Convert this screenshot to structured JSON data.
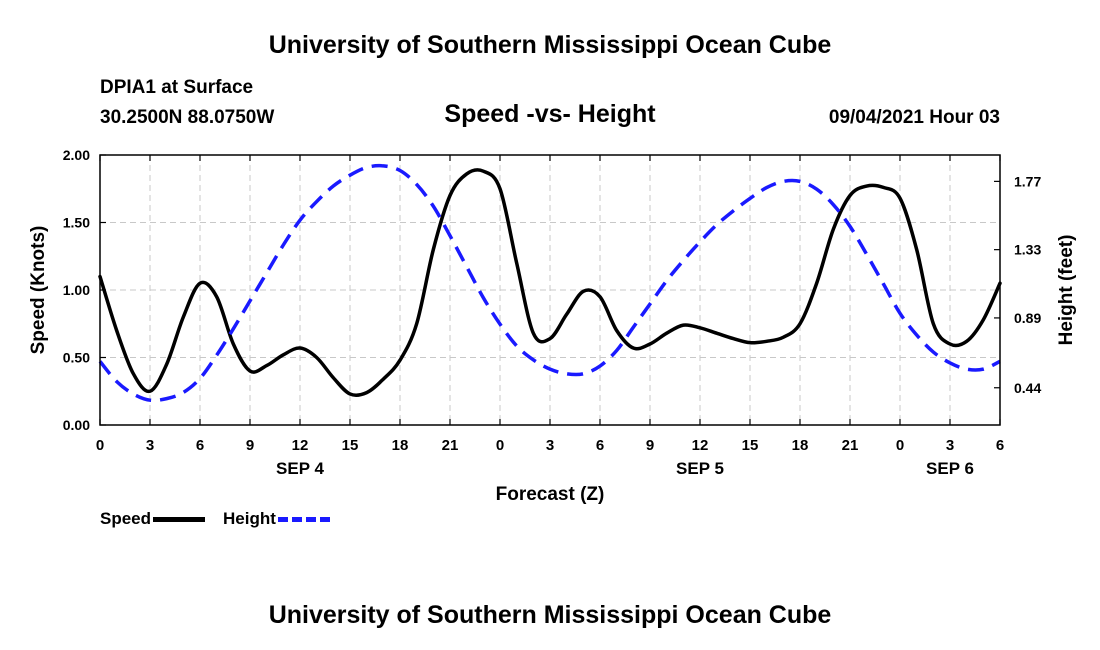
{
  "page_title": "University of Southern Mississippi Ocean Cube",
  "footer_title": "University of Southern Mississippi Ocean Cube",
  "station": {
    "name": "DPIA1 at Surface",
    "coords": "30.2500N  88.0750W",
    "datetime": "09/04/2021 Hour 03"
  },
  "chart_data": {
    "type": "line",
    "title": "Speed -vs- Height",
    "xlabel": "Forecast (Z)",
    "ylabel": "Speed (Knots)",
    "ylabel_right": "Height (feet)",
    "xlim": [
      0,
      54
    ],
    "ylim": [
      0,
      2
    ],
    "ylim_right": [
      0.2,
      1.94
    ],
    "grid": true,
    "x_ticks": [
      0,
      3,
      6,
      9,
      12,
      15,
      18,
      21,
      24,
      27,
      30,
      33,
      36,
      39,
      42,
      45,
      48,
      51,
      54
    ],
    "x_tick_labels": [
      "0",
      "3",
      "6",
      "9",
      "12",
      "15",
      "18",
      "21",
      "0",
      "3",
      "6",
      "9",
      "12",
      "15",
      "18",
      "21",
      "0",
      "3",
      "6"
    ],
    "y_ticks": [
      0,
      0.5,
      1.0,
      1.5,
      2.0
    ],
    "y_tick_labels": [
      "0.00",
      "0.50",
      "1.00",
      "1.50",
      "2.00"
    ],
    "y_right_ticks": [
      0.44,
      0.89,
      1.33,
      1.77
    ],
    "y_right_tick_labels": [
      "0.44",
      "0.89",
      "1.33",
      "1.77"
    ],
    "day_labels": [
      {
        "x": 12,
        "label": "SEP 4"
      },
      {
        "x": 36,
        "label": "SEP 5"
      },
      {
        "x": 51,
        "label": "SEP 6"
      }
    ],
    "series": [
      {
        "name": "Speed",
        "axis": "left",
        "color": "#000000",
        "dash": "solid",
        "x": [
          0,
          1,
          2,
          3,
          4,
          5,
          6,
          7,
          8,
          9,
          10,
          11,
          12,
          13,
          14,
          15,
          16,
          17,
          18,
          19,
          20,
          21,
          22,
          23,
          24,
          25,
          26,
          27,
          28,
          29,
          30,
          31,
          32,
          33,
          34,
          35,
          36,
          37,
          38,
          39,
          40,
          41,
          42,
          43,
          44,
          45,
          46,
          47,
          48,
          49,
          50,
          51,
          52,
          53,
          54
        ],
        "values": [
          1.1,
          0.7,
          0.38,
          0.25,
          0.45,
          0.8,
          1.05,
          0.95,
          0.6,
          0.4,
          0.44,
          0.52,
          0.57,
          0.5,
          0.35,
          0.23,
          0.24,
          0.34,
          0.48,
          0.75,
          1.3,
          1.7,
          1.86,
          1.88,
          1.75,
          1.2,
          0.68,
          0.64,
          0.82,
          0.99,
          0.95,
          0.7,
          0.57,
          0.6,
          0.68,
          0.74,
          0.72,
          0.68,
          0.64,
          0.61,
          0.62,
          0.65,
          0.75,
          1.05,
          1.45,
          1.7,
          1.77,
          1.76,
          1.68,
          1.3,
          0.75,
          0.6,
          0.62,
          0.78,
          1.05
        ]
      },
      {
        "name": "Height",
        "axis": "right",
        "color": "#1a1aff",
        "dash": "dashed",
        "x": [
          0,
          1,
          2,
          3,
          4,
          5,
          6,
          7,
          8,
          9,
          10,
          11,
          12,
          13,
          14,
          15,
          16,
          17,
          18,
          19,
          20,
          21,
          22,
          23,
          24,
          25,
          26,
          27,
          28,
          29,
          30,
          31,
          32,
          33,
          34,
          35,
          36,
          37,
          38,
          39,
          40,
          41,
          42,
          43,
          44,
          45,
          46,
          47,
          48,
          49,
          50,
          51,
          52,
          53,
          54
        ],
        "values": [
          0.61,
          0.48,
          0.4,
          0.36,
          0.37,
          0.41,
          0.5,
          0.65,
          0.82,
          1.0,
          1.18,
          1.36,
          1.52,
          1.64,
          1.74,
          1.81,
          1.86,
          1.87,
          1.84,
          1.75,
          1.61,
          1.42,
          1.22,
          1.02,
          0.85,
          0.71,
          0.62,
          0.56,
          0.53,
          0.53,
          0.58,
          0.68,
          0.83,
          0.98,
          1.13,
          1.26,
          1.38,
          1.49,
          1.58,
          1.66,
          1.73,
          1.77,
          1.77,
          1.72,
          1.62,
          1.48,
          1.3,
          1.11,
          0.92,
          0.78,
          0.67,
          0.6,
          0.56,
          0.56,
          0.61
        ]
      }
    ],
    "legend": [
      {
        "label": "Speed",
        "color": "#000000",
        "dash": "solid"
      },
      {
        "label": "Height",
        "color": "#1a1aff",
        "dash": "dashed"
      }
    ]
  }
}
